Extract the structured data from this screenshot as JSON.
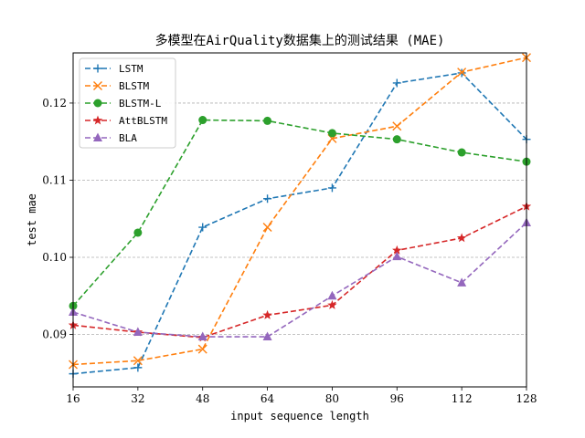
{
  "chart_data": {
    "type": "line",
    "title": "多模型在AirQuality数据集上的测试结果 (MAE)",
    "xlabel": "input sequence length",
    "ylabel": "test mae",
    "x": [
      16,
      32,
      48,
      64,
      80,
      96,
      112,
      128
    ],
    "xlim": [
      16,
      128
    ],
    "ylim": [
      0.0832,
      0.1265
    ],
    "xticks": [
      "16",
      "32",
      "48",
      "64",
      "80",
      "96",
      "112",
      "128"
    ],
    "yticks": [
      {
        "value": 0.09,
        "label": "0.09"
      },
      {
        "value": 0.1,
        "label": "0.10"
      },
      {
        "value": 0.11,
        "label": "0.11"
      },
      {
        "value": 0.12,
        "label": "0.12"
      }
    ],
    "grid": "y-dashed",
    "legend_position": "top-left",
    "series": [
      {
        "name": "LSTM",
        "color": "#1f77b4",
        "marker": "plus",
        "values": [
          0.0849,
          0.0857,
          0.1039,
          0.1076,
          0.109,
          0.1226,
          0.1239,
          0.1153
        ]
      },
      {
        "name": "BLSTM",
        "color": "#ff7f0e",
        "marker": "x",
        "values": [
          0.0861,
          0.0866,
          0.0881,
          0.1039,
          0.1154,
          0.117,
          0.124,
          0.1259
        ]
      },
      {
        "name": "BLSTM-L",
        "color": "#2ca02c",
        "marker": "circle",
        "values": [
          0.0937,
          0.1032,
          0.1178,
          0.1177,
          0.1161,
          0.1153,
          0.1136,
          0.1124
        ]
      },
      {
        "name": "AttBLSTM",
        "color": "#d62728",
        "marker": "star",
        "values": [
          0.0912,
          0.0903,
          0.0896,
          0.0925,
          0.0938,
          0.1009,
          0.1025,
          0.1066
        ]
      },
      {
        "name": "BLA",
        "color": "#9467bd",
        "marker": "triangle",
        "values": [
          0.0929,
          0.0903,
          0.0897,
          0.0897,
          0.095,
          0.1001,
          0.0967,
          0.1045
        ]
      }
    ]
  }
}
